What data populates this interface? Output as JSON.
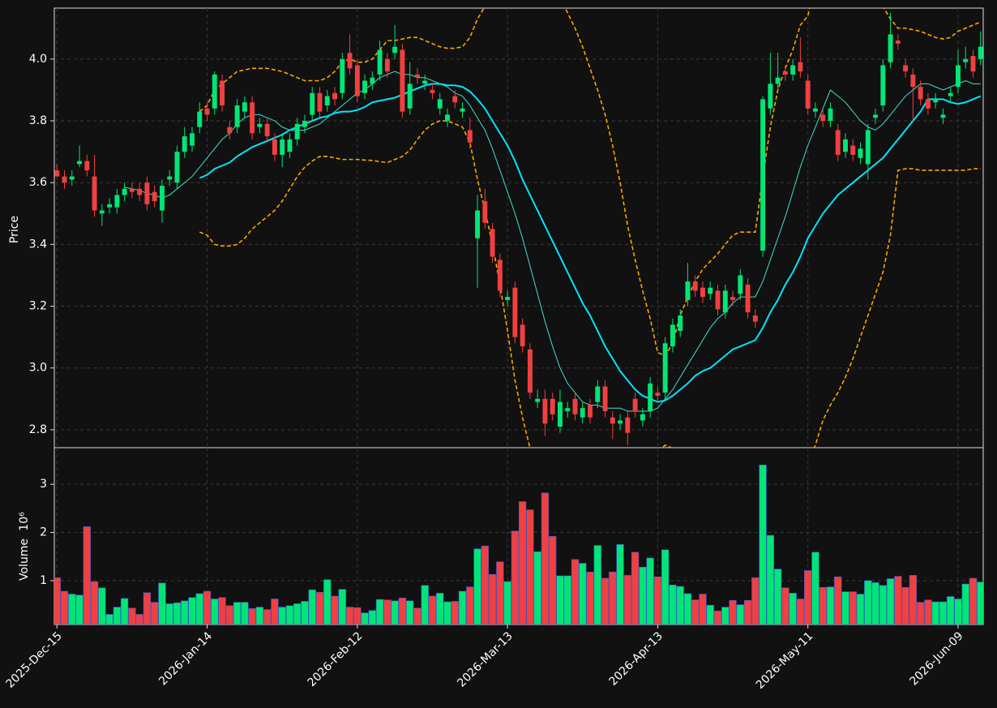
{
  "chart_data": {
    "type": "candlestick",
    "ylabel": "Price",
    "volume_label": "Volume",
    "volume_exponent": "10⁶",
    "up_color": "#00e676",
    "down_color": "#f04040",
    "grid": true,
    "categories": [
      "2025-Dec-15",
      null,
      null,
      null,
      null,
      null,
      null,
      null,
      null,
      null,
      null,
      null,
      null,
      null,
      null,
      null,
      null,
      null,
      null,
      null,
      "2026-Jan-14",
      null,
      null,
      null,
      null,
      null,
      null,
      null,
      null,
      null,
      null,
      null,
      null,
      null,
      null,
      null,
      null,
      null,
      null,
      null,
      "2026-Feb-12",
      null,
      null,
      null,
      null,
      null,
      null,
      null,
      null,
      null,
      null,
      null,
      null,
      null,
      null,
      null,
      null,
      null,
      null,
      null,
      "2026-Mar-13",
      null,
      null,
      null,
      null,
      null,
      null,
      null,
      null,
      null,
      null,
      null,
      null,
      null,
      null,
      null,
      null,
      null,
      null,
      null,
      "2026-Apr-13",
      null,
      null,
      null,
      null,
      null,
      null,
      null,
      null,
      null,
      null,
      null,
      null,
      null,
      null,
      null,
      null,
      null,
      null,
      null,
      "2026-May-11",
      null,
      null,
      null,
      null,
      null,
      null,
      null,
      null,
      null,
      null,
      null,
      null,
      null,
      null,
      null,
      null,
      null,
      null,
      null,
      "2026-Jun-09",
      null,
      null,
      null
    ],
    "xlim": [
      -0.35,
      123.35
    ],
    "open": [
      3.64,
      3.62,
      3.61,
      3.66,
      3.67,
      3.62,
      3.5,
      3.52,
      3.52,
      3.56,
      3.58,
      3.58,
      3.6,
      3.57,
      3.51,
      3.61,
      3.6,
      3.7,
      3.72,
      3.78,
      3.84,
      3.84,
      3.93,
      3.78,
      3.78,
      3.83,
      3.86,
      3.78,
      3.79,
      3.74,
      3.69,
      3.7,
      3.74,
      3.78,
      3.82,
      3.89,
      3.85,
      3.89,
      3.89,
      4.02,
      3.98,
      3.89,
      3.92,
      3.95,
      4.0,
      4.02,
      4.03,
      3.84,
      3.95,
      3.92,
      3.9,
      3.84,
      3.8,
      3.88,
      3.83,
      3.77,
      3.42,
      3.54,
      3.45,
      3.35,
      3.22,
      3.26,
      3.14,
      3.06,
      2.89,
      2.9,
      2.9,
      2.81,
      2.86,
      2.9,
      2.84,
      2.88,
      2.89,
      2.94,
      2.84,
      2.82,
      2.84,
      2.9,
      2.83,
      2.86,
      2.92,
      2.92,
      3.07,
      3.12,
      3.22,
      3.28,
      3.26,
      3.24,
      3.25,
      3.18,
      3.23,
      3.24,
      3.27,
      3.17,
      3.38,
      3.84,
      3.92,
      3.96,
      3.95,
      3.99,
      3.93,
      3.83,
      3.82,
      3.8,
      3.77,
      3.7,
      3.72,
      3.68,
      3.66,
      3.81,
      3.85,
      3.99,
      4.06,
      3.98,
      3.95,
      3.91,
      3.87,
      3.86,
      3.81,
      3.88,
      3.91,
      3.99,
      4.01,
      4.0
    ],
    "high": [
      3.66,
      3.64,
      3.64,
      3.72,
      3.69,
      3.69,
      3.53,
      3.55,
      3.58,
      3.6,
      3.6,
      3.6,
      3.62,
      3.59,
      3.61,
      3.64,
      3.72,
      3.78,
      3.78,
      3.86,
      3.86,
      3.96,
      3.95,
      3.8,
      3.87,
      3.88,
      3.88,
      3.81,
      3.81,
      3.76,
      3.76,
      3.76,
      3.81,
      3.82,
      3.91,
      3.91,
      3.9,
      3.91,
      4.02,
      4.08,
      4.0,
      3.95,
      3.96,
      4.06,
      4.02,
      4.11,
      4.05,
      3.99,
      3.97,
      3.95,
      3.92,
      3.89,
      3.84,
      3.9,
      3.86,
      3.81,
      3.56,
      3.58,
      3.47,
      3.37,
      3.25,
      3.28,
      3.16,
      3.08,
      2.93,
      2.93,
      2.92,
      2.93,
      2.89,
      2.92,
      2.89,
      2.9,
      2.96,
      2.96,
      2.86,
      2.85,
      2.86,
      2.92,
      2.87,
      2.97,
      2.94,
      3.1,
      3.16,
      3.19,
      3.34,
      3.3,
      3.28,
      3.28,
      3.27,
      3.27,
      3.25,
      3.32,
      3.29,
      3.19,
      3.88,
      4.02,
      4.02,
      3.98,
      4.0,
      4.07,
      3.95,
      3.86,
      3.84,
      3.86,
      3.79,
      3.76,
      3.74,
      3.73,
      3.79,
      3.84,
      4.0,
      4.15,
      4.08,
      4.0,
      3.97,
      3.93,
      3.89,
      3.89,
      3.84,
      3.91,
      4.03,
      4.04,
      4.03,
      4.09
    ],
    "low": [
      3.62,
      3.58,
      3.59,
      3.65,
      3.62,
      3.49,
      3.46,
      3.5,
      3.5,
      3.54,
      3.55,
      3.54,
      3.51,
      3.52,
      3.47,
      3.59,
      3.58,
      3.68,
      3.7,
      3.76,
      3.8,
      3.82,
      3.83,
      3.74,
      3.76,
      3.81,
      3.74,
      3.76,
      3.73,
      3.67,
      3.65,
      3.68,
      3.72,
      3.76,
      3.8,
      3.81,
      3.83,
      3.85,
      3.87,
      3.95,
      3.86,
      3.87,
      3.9,
      3.93,
      3.94,
      4.0,
      3.81,
      3.82,
      3.92,
      3.9,
      3.87,
      3.82,
      3.78,
      3.84,
      3.81,
      3.71,
      3.26,
      3.45,
      3.34,
      3.23,
      3.2,
      3.08,
      3.05,
      2.9,
      2.87,
      2.78,
      2.83,
      2.79,
      2.84,
      2.83,
      2.82,
      2.82,
      2.87,
      2.84,
      2.77,
      2.8,
      2.75,
      2.84,
      2.81,
      2.84,
      2.89,
      2.9,
      3.05,
      3.1,
      3.2,
      3.23,
      3.21,
      3.22,
      3.17,
      3.16,
      3.2,
      3.22,
      3.16,
      3.13,
      3.36,
      3.82,
      3.9,
      3.93,
      3.93,
      3.94,
      3.82,
      3.81,
      3.78,
      3.78,
      3.67,
      3.68,
      3.67,
      3.66,
      3.61,
      3.79,
      3.83,
      3.97,
      4.03,
      3.94,
      3.8,
      3.85,
      3.82,
      3.84,
      3.79,
      3.86,
      3.89,
      3.97,
      3.94,
      3.98
    ],
    "close": [
      3.62,
      3.6,
      3.62,
      3.67,
      3.64,
      3.51,
      3.51,
      3.53,
      3.56,
      3.58,
      3.57,
      3.56,
      3.53,
      3.54,
      3.59,
      3.62,
      3.7,
      3.75,
      3.76,
      3.83,
      3.82,
      3.95,
      3.85,
      3.76,
      3.85,
      3.86,
      3.76,
      3.79,
      3.75,
      3.69,
      3.74,
      3.74,
      3.79,
      3.8,
      3.89,
      3.83,
      3.88,
      3.87,
      4.0,
      3.97,
      3.88,
      3.93,
      3.94,
      4.03,
      3.96,
      4.04,
      3.83,
      3.92,
      3.94,
      3.93,
      3.89,
      3.87,
      3.82,
      3.86,
      3.84,
      3.73,
      3.51,
      3.47,
      3.36,
      3.25,
      3.23,
      3.1,
      3.07,
      2.92,
      2.9,
      2.82,
      2.85,
      2.89,
      2.87,
      2.85,
      2.87,
      2.84,
      2.94,
      2.86,
      2.82,
      2.83,
      2.79,
      2.86,
      2.85,
      2.95,
      2.91,
      3.08,
      3.14,
      3.17,
      3.28,
      3.25,
      3.23,
      3.26,
      3.19,
      3.25,
      3.22,
      3.3,
      3.18,
      3.15,
      3.87,
      3.92,
      3.94,
      3.95,
      3.98,
      3.96,
      3.84,
      3.84,
      3.8,
      3.84,
      3.69,
      3.74,
      3.69,
      3.71,
      3.77,
      3.82,
      3.98,
      4.08,
      4.05,
      3.96,
      3.91,
      3.87,
      3.84,
      3.87,
      3.82,
      3.89,
      3.98,
      4.0,
      3.96,
      4.04
    ],
    "volume": [
      1.06,
      0.78,
      0.72,
      0.7,
      2.12,
      0.98,
      0.85,
      0.3,
      0.45,
      0.63,
      0.43,
      0.3,
      0.75,
      0.55,
      0.95,
      0.52,
      0.54,
      0.58,
      0.65,
      0.73,
      0.78,
      0.62,
      0.65,
      0.48,
      0.55,
      0.55,
      0.42,
      0.45,
      0.4,
      0.62,
      0.45,
      0.48,
      0.52,
      0.57,
      0.81,
      0.76,
      1.02,
      0.68,
      0.82,
      0.45,
      0.44,
      0.33,
      0.38,
      0.61,
      0.6,
      0.58,
      0.64,
      0.58,
      0.43,
      0.9,
      0.68,
      0.74,
      0.56,
      0.57,
      0.78,
      0.87,
      1.66,
      1.72,
      1.13,
      1.39,
      0.98,
      2.03,
      2.64,
      2.47,
      1.6,
      2.82,
      1.92,
      1.1,
      1.1,
      1.44,
      1.36,
      1.18,
      1.73,
      1.05,
      1.18,
      1.75,
      1.11,
      1.59,
      1.28,
      1.47,
      1.08,
      1.64,
      0.91,
      0.88,
      0.73,
      0.6,
      0.72,
      0.49,
      0.37,
      0.45,
      0.59,
      0.5,
      0.59,
      1.06,
      3.4,
      1.94,
      1.24,
      0.85,
      0.74,
      0.62,
      1.21,
      1.59,
      0.86,
      0.87,
      1.08,
      0.77,
      0.77,
      0.72,
      1.0,
      0.96,
      0.9,
      1.04,
      1.09,
      0.86,
      1.11,
      0.55,
      0.6,
      0.56,
      0.56,
      0.67,
      0.62,
      0.93,
      1.05,
      0.97
    ],
    "overlays": [
      {
        "color": "#40e0d0",
        "width": 1,
        "dashed": false,
        "values": [
          null,
          null,
          null,
          null,
          null,
          null,
          null,
          null,
          null,
          3.585,
          3.58,
          3.575,
          3.565,
          3.56,
          3.55,
          3.56,
          3.58,
          3.6,
          3.62,
          3.65,
          3.68,
          3.71,
          3.74,
          3.76,
          3.79,
          3.81,
          3.82,
          3.82,
          3.81,
          3.8,
          3.78,
          3.77,
          3.77,
          3.77,
          3.78,
          3.79,
          3.81,
          3.83,
          3.85,
          3.87,
          3.89,
          3.9,
          3.92,
          3.94,
          3.95,
          3.96,
          3.95,
          3.95,
          3.94,
          3.94,
          3.93,
          3.92,
          3.91,
          3.89,
          3.88,
          3.85,
          3.81,
          3.77,
          3.71,
          3.64,
          3.57,
          3.5,
          3.42,
          3.33,
          3.24,
          3.15,
          3.07,
          3.0,
          2.95,
          2.92,
          2.89,
          2.88,
          2.88,
          2.87,
          2.87,
          2.87,
          2.86,
          2.86,
          2.86,
          2.86,
          2.87,
          2.9,
          2.93,
          2.97,
          3.01,
          3.05,
          3.09,
          3.13,
          3.16,
          3.18,
          3.21,
          3.23,
          3.23,
          3.23,
          3.28,
          3.35,
          3.42,
          3.49,
          3.57,
          3.65,
          3.72,
          3.78,
          3.84,
          3.9,
          3.88,
          3.86,
          3.83,
          3.8,
          3.78,
          3.77,
          3.79,
          3.82,
          3.85,
          3.88,
          3.9,
          3.92,
          3.92,
          3.91,
          3.9,
          3.91,
          3.92,
          3.93,
          3.92,
          3.92
        ]
      },
      {
        "color": "#00e5ff",
        "width": 2,
        "dashed": false,
        "values": [
          null,
          null,
          null,
          null,
          null,
          null,
          null,
          null,
          null,
          null,
          null,
          null,
          null,
          null,
          null,
          null,
          null,
          null,
          null,
          3.615,
          3.625,
          3.645,
          3.655,
          3.665,
          3.685,
          3.7,
          3.715,
          3.725,
          3.735,
          3.745,
          3.755,
          3.77,
          3.78,
          3.79,
          3.8,
          3.81,
          3.815,
          3.825,
          3.83,
          3.83,
          3.835,
          3.845,
          3.86,
          3.865,
          3.87,
          3.875,
          3.885,
          3.895,
          3.905,
          3.915,
          3.92,
          3.92,
          3.915,
          3.915,
          3.91,
          3.895,
          3.87,
          3.84,
          3.8,
          3.76,
          3.72,
          3.67,
          3.61,
          3.56,
          3.51,
          3.46,
          3.41,
          3.36,
          3.31,
          3.26,
          3.21,
          3.17,
          3.12,
          3.07,
          3.03,
          2.99,
          2.96,
          2.93,
          2.91,
          2.9,
          2.89,
          2.895,
          2.91,
          2.93,
          2.95,
          2.975,
          2.99,
          3.0,
          3.02,
          3.04,
          3.06,
          3.07,
          3.08,
          3.09,
          3.13,
          3.18,
          3.22,
          3.27,
          3.31,
          3.36,
          3.42,
          3.46,
          3.5,
          3.53,
          3.56,
          3.58,
          3.6,
          3.62,
          3.64,
          3.66,
          3.68,
          3.71,
          3.74,
          3.77,
          3.8,
          3.83,
          3.87,
          3.87,
          3.87,
          3.86,
          3.855,
          3.86,
          3.87,
          3.88
        ]
      },
      {
        "color": "#ffa500",
        "width": 1.6,
        "dashed": true,
        "values": [
          null,
          null,
          null,
          null,
          null,
          null,
          null,
          null,
          null,
          null,
          null,
          null,
          null,
          null,
          null,
          null,
          null,
          null,
          null,
          3.83,
          3.85,
          3.9,
          3.92,
          3.94,
          3.96,
          3.965,
          3.97,
          3.97,
          3.97,
          3.965,
          3.96,
          3.95,
          3.94,
          3.93,
          3.93,
          3.93,
          3.94,
          3.96,
          3.99,
          4.0,
          3.99,
          3.99,
          4.0,
          4.03,
          4.06,
          4.06,
          4.065,
          4.07,
          4.07,
          4.06,
          4.05,
          4.04,
          4.035,
          4.035,
          4.04,
          4.07,
          4.13,
          4.17,
          4.2,
          4.25,
          4.32,
          4.38,
          4.4,
          4.38,
          4.34,
          4.3,
          4.25,
          4.2,
          4.15,
          4.1,
          4.04,
          3.97,
          3.9,
          3.82,
          3.72,
          3.6,
          3.46,
          3.35,
          3.25,
          3.16,
          3.05,
          3.04,
          3.08,
          3.17,
          3.23,
          3.28,
          3.32,
          3.345,
          3.37,
          3.4,
          3.43,
          3.44,
          3.44,
          3.44,
          3.62,
          3.78,
          3.9,
          3.97,
          4.03,
          4.11,
          4.14,
          4.25,
          4.3,
          4.32,
          4.33,
          4.32,
          4.3,
          4.27,
          4.24,
          4.2,
          4.17,
          4.13,
          4.1,
          4.1,
          4.095,
          4.09,
          4.08,
          4.07,
          4.065,
          4.07,
          4.09,
          4.1,
          4.11,
          4.12
        ]
      },
      {
        "color": "#ffa500",
        "width": 1.6,
        "dashed": true,
        "values": [
          null,
          null,
          null,
          null,
          null,
          null,
          null,
          null,
          null,
          null,
          null,
          null,
          null,
          null,
          null,
          null,
          null,
          null,
          null,
          3.44,
          3.43,
          3.4,
          3.395,
          3.395,
          3.4,
          3.42,
          3.45,
          3.47,
          3.49,
          3.51,
          3.54,
          3.58,
          3.62,
          3.65,
          3.67,
          3.685,
          3.685,
          3.68,
          3.675,
          3.675,
          3.675,
          3.673,
          3.672,
          3.668,
          3.665,
          3.675,
          3.685,
          3.705,
          3.74,
          3.77,
          3.79,
          3.8,
          3.8,
          3.79,
          3.78,
          3.73,
          3.61,
          3.51,
          3.4,
          3.27,
          3.12,
          2.96,
          2.84,
          2.74,
          2.68,
          2.62,
          2.57,
          2.52,
          2.47,
          2.42,
          2.38,
          2.37,
          2.34,
          2.32,
          2.34,
          2.38,
          2.46,
          2.51,
          2.57,
          2.64,
          2.73,
          2.75,
          2.74,
          2.69,
          2.67,
          2.67,
          2.66,
          2.655,
          2.67,
          2.68,
          2.69,
          2.7,
          2.72,
          2.74,
          2.64,
          2.58,
          2.54,
          2.57,
          2.59,
          2.61,
          2.7,
          2.75,
          2.83,
          2.88,
          2.92,
          2.97,
          3.03,
          3.1,
          3.17,
          3.24,
          3.31,
          3.43,
          3.64,
          3.645,
          3.645,
          3.64,
          3.64,
          3.64,
          3.64,
          3.64,
          3.64,
          3.64,
          3.645,
          3.645
        ]
      }
    ],
    "ylim": [
      2.742,
      4.165
    ],
    "yticks": [
      2.8,
      {
        "value": 3,
        "label": "3.0"
      },
      3.2,
      3.4,
      3.6,
      3.8,
      {
        "value": 4,
        "label": "4.0"
      }
    ],
    "volume_ylim": [
      0.09,
      3.76
    ],
    "volume_yticks": [
      1,
      2,
      3
    ]
  }
}
